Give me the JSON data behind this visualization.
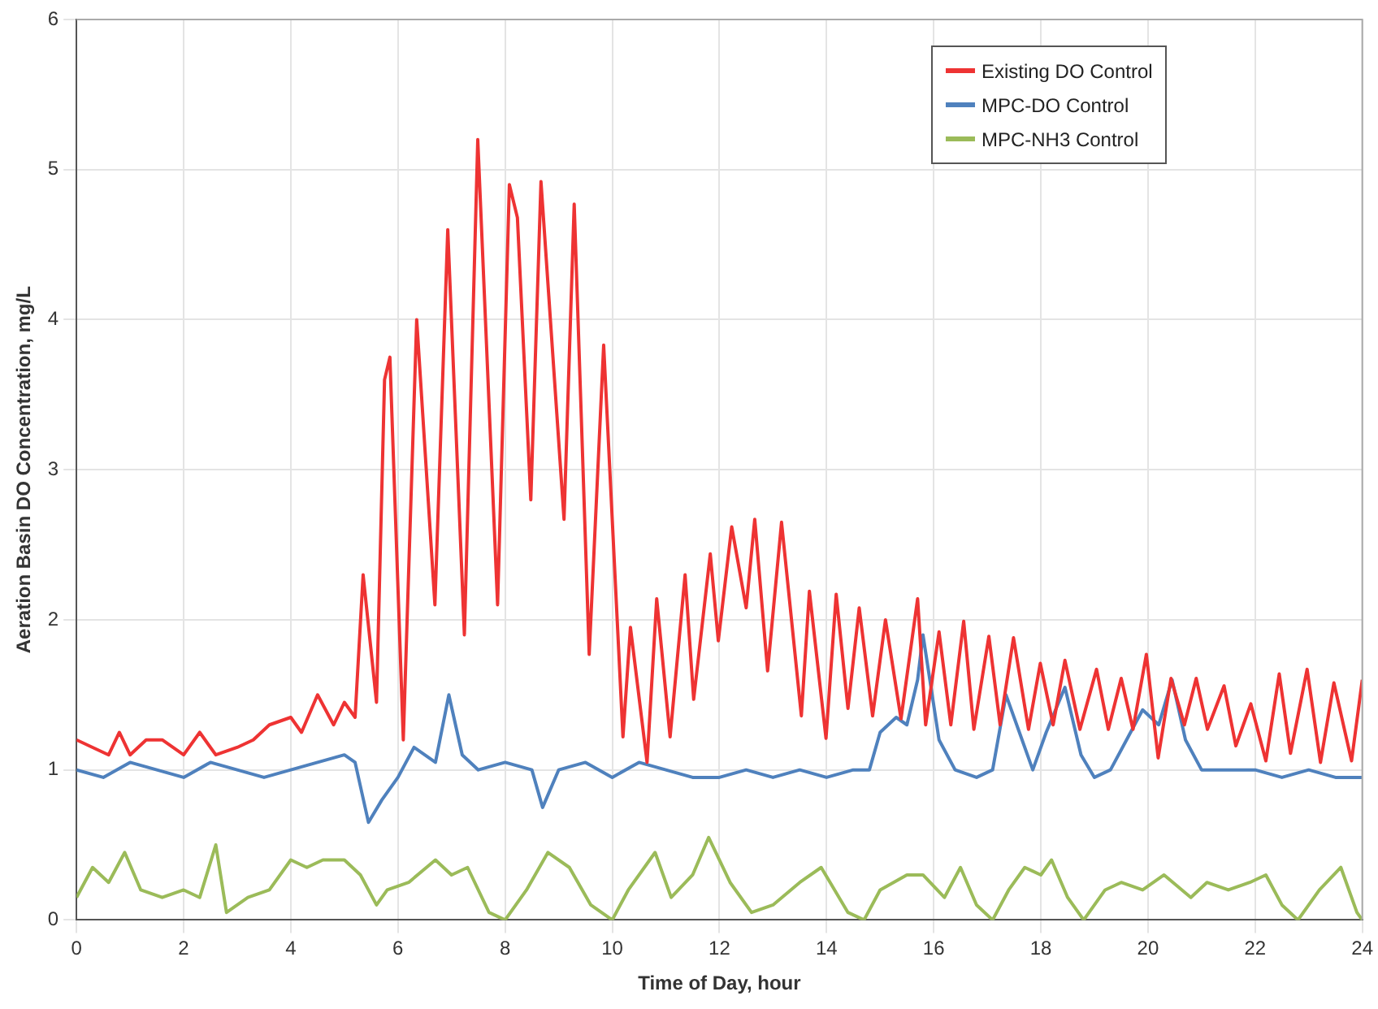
{
  "chart_data": {
    "type": "line",
    "xlabel": "Time of Day, hour",
    "ylabel": "Aeration Basin DO Concentration, mg/L",
    "xlim": [
      0,
      24
    ],
    "xticks": [
      0,
      2,
      4,
      6,
      8,
      10,
      12,
      14,
      16,
      18,
      20,
      22,
      24
    ],
    "ylim": [
      0,
      6
    ],
    "yticks": [
      0,
      1,
      2,
      3,
      4,
      5,
      6
    ],
    "grid": true,
    "legend": "top right",
    "marker": "none",
    "line_style": "solid",
    "series": [
      {
        "name": "Existing DO Control",
        "color": "#ee3333",
        "x": [
          0,
          0.3,
          0.6,
          0.8,
          1.0,
          1.3,
          1.6,
          2.0,
          2.3,
          2.6,
          3.0,
          3.3,
          3.6,
          4.0,
          4.2,
          4.5,
          4.8,
          5.0,
          5.2,
          5.35,
          5.6,
          5.75,
          5.85,
          6.1,
          6.35,
          6.69,
          6.93,
          7.24,
          7.49,
          7.86,
          8.08,
          8.23,
          8.48,
          8.67,
          9.1,
          9.29,
          9.57,
          9.84,
          10.2,
          10.34,
          10.65,
          10.83,
          11.08,
          11.36,
          11.52,
          11.83,
          11.98,
          12.23,
          12.5,
          12.66,
          12.9,
          13.16,
          13.53,
          13.68,
          13.99,
          14.18,
          14.4,
          14.61,
          14.86,
          15.1,
          15.39,
          15.7,
          15.85,
          16.1,
          16.32,
          16.56,
          16.75,
          17.03,
          17.24,
          17.49,
          17.77,
          17.99,
          18.23,
          18.45,
          18.73,
          19.04,
          19.26,
          19.5,
          19.72,
          19.97,
          20.19,
          20.43,
          20.68,
          20.9,
          21.11,
          21.42,
          21.64,
          21.92,
          22.2,
          22.45,
          22.66,
          22.97,
          23.22,
          23.47,
          23.8,
          24
        ],
        "values": [
          1.2,
          1.15,
          1.1,
          1.25,
          1.1,
          1.2,
          1.2,
          1.1,
          1.25,
          1.1,
          1.15,
          1.2,
          1.3,
          1.35,
          1.25,
          1.5,
          1.3,
          1.45,
          1.35,
          2.3,
          1.45,
          3.6,
          3.75,
          1.2,
          4.0,
          2.1,
          4.6,
          1.9,
          5.2,
          2.1,
          4.9,
          4.68,
          2.8,
          4.92,
          2.67,
          4.77,
          1.77,
          3.83,
          1.22,
          1.95,
          1.05,
          2.14,
          1.22,
          2.3,
          1.47,
          2.44,
          1.86,
          2.62,
          2.08,
          2.67,
          1.66,
          2.65,
          1.36,
          2.19,
          1.21,
          2.17,
          1.41,
          2.08,
          1.36,
          2.0,
          1.34,
          2.14,
          1.3,
          1.92,
          1.3,
          1.99,
          1.27,
          1.89,
          1.3,
          1.88,
          1.27,
          1.71,
          1.3,
          1.73,
          1.27,
          1.67,
          1.27,
          1.61,
          1.27,
          1.77,
          1.08,
          1.61,
          1.3,
          1.61,
          1.27,
          1.56,
          1.16,
          1.44,
          1.06,
          1.64,
          1.11,
          1.67,
          1.05,
          1.58,
          1.06,
          1.6
        ]
      },
      {
        "name": "MPC-DO Control",
        "color": "#4f81bd",
        "x": [
          0,
          0.5,
          1,
          1.5,
          2,
          2.5,
          3,
          3.5,
          4,
          4.5,
          5,
          5.2,
          5.45,
          5.7,
          6,
          6.3,
          6.7,
          6.95,
          7.2,
          7.5,
          8,
          8.5,
          8.7,
          9,
          9.5,
          10,
          10.5,
          11,
          11.5,
          12,
          12.5,
          13,
          13.5,
          14,
          14.5,
          14.8,
          15,
          15.3,
          15.5,
          15.7,
          15.8,
          16.1,
          16.4,
          16.8,
          17.1,
          17.35,
          17.6,
          17.85,
          18.1,
          18.45,
          18.75,
          19.0,
          19.3,
          19.6,
          19.9,
          20.2,
          20.45,
          20.7,
          21,
          21.5,
          22,
          22.5,
          23,
          23.5,
          24
        ],
        "values": [
          1.0,
          0.95,
          1.05,
          1.0,
          0.95,
          1.05,
          1.0,
          0.95,
          1.0,
          1.05,
          1.1,
          1.05,
          0.65,
          0.8,
          0.95,
          1.15,
          1.05,
          1.5,
          1.1,
          1.0,
          1.05,
          1.0,
          0.75,
          1.0,
          1.05,
          0.95,
          1.05,
          1.0,
          0.95,
          0.95,
          1.0,
          0.95,
          1.0,
          0.95,
          1.0,
          1.0,
          1.25,
          1.35,
          1.3,
          1.6,
          1.9,
          1.2,
          1.0,
          0.95,
          1.0,
          1.5,
          1.25,
          1.0,
          1.25,
          1.55,
          1.1,
          0.95,
          1.0,
          1.2,
          1.4,
          1.3,
          1.6,
          1.2,
          1.0,
          1.0,
          1.0,
          0.95,
          1.0,
          0.95,
          0.95
        ]
      },
      {
        "name": "MPC-NH3 Control",
        "color": "#9bbb59",
        "x": [
          0,
          0.3,
          0.6,
          0.9,
          1.2,
          1.6,
          2.0,
          2.3,
          2.6,
          2.8,
          3.2,
          3.6,
          4.0,
          4.3,
          4.6,
          5.0,
          5.3,
          5.6,
          5.8,
          6.2,
          6.7,
          7.0,
          7.3,
          7.7,
          8.0,
          8.4,
          8.8,
          9.2,
          9.6,
          10.0,
          10.3,
          10.8,
          11.1,
          11.5,
          11.8,
          12.2,
          12.6,
          13.0,
          13.5,
          13.9,
          14.4,
          14.7,
          15.0,
          15.5,
          15.8,
          16.2,
          16.5,
          16.8,
          17.1,
          17.4,
          17.7,
          18.0,
          18.2,
          18.5,
          18.8,
          19.2,
          19.5,
          19.9,
          20.3,
          20.8,
          21.1,
          21.5,
          21.9,
          22.2,
          22.5,
          22.8,
          23.2,
          23.6,
          23.9,
          24
        ],
        "values": [
          0.15,
          0.35,
          0.25,
          0.45,
          0.2,
          0.15,
          0.2,
          0.15,
          0.5,
          0.05,
          0.15,
          0.2,
          0.4,
          0.35,
          0.4,
          0.4,
          0.3,
          0.1,
          0.2,
          0.25,
          0.4,
          0.3,
          0.35,
          0.05,
          0.0,
          0.2,
          0.45,
          0.35,
          0.1,
          0.0,
          0.2,
          0.45,
          0.15,
          0.3,
          0.55,
          0.25,
          0.05,
          0.1,
          0.25,
          0.35,
          0.05,
          0.0,
          0.2,
          0.3,
          0.3,
          0.15,
          0.35,
          0.1,
          0.0,
          0.2,
          0.35,
          0.3,
          0.4,
          0.15,
          0.0,
          0.2,
          0.25,
          0.2,
          0.3,
          0.15,
          0.25,
          0.2,
          0.25,
          0.3,
          0.1,
          0.0,
          0.2,
          0.35,
          0.05,
          0.0
        ]
      }
    ]
  }
}
